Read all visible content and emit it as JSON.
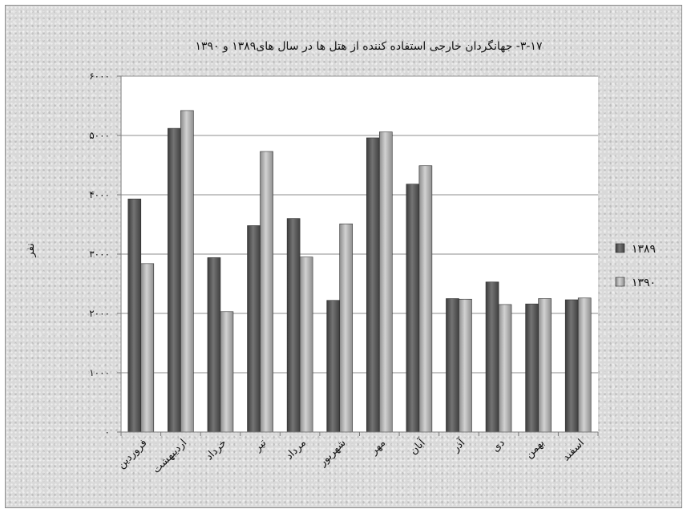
{
  "chart_data": {
    "type": "bar",
    "title": "۳-۱۷- جهانگردان خارجی استفاده کننده از هتل ها در سال های۱۳۸۹ و ۱۳۹۰",
    "ylabel": "نفر",
    "xlabel": "",
    "ylim": [
      0,
      6000
    ],
    "yticks": [
      {
        "value": 0,
        "label": "۰"
      },
      {
        "value": 1000,
        "label": "۱۰۰۰"
      },
      {
        "value": 2000,
        "label": "۲۰۰۰"
      },
      {
        "value": 3000,
        "label": "۳۰۰۰"
      },
      {
        "value": 4000,
        "label": "۴۰۰۰"
      },
      {
        "value": 5000,
        "label": "۵۰۰۰"
      },
      {
        "value": 6000,
        "label": "۶۰۰۰"
      }
    ],
    "grid": true,
    "legend_position": "right",
    "categories": [
      "فروردین",
      "اردیبهشت",
      "خرداد",
      "تیر",
      "مرداد",
      "شهریور",
      "مهر",
      "آبان",
      "آذر",
      "دی",
      "بهمن",
      "اسفند"
    ],
    "series": [
      {
        "name": "۱۳۸۹",
        "color": "#5f5f5f",
        "values": [
          3930,
          5120,
          2940,
          3480,
          3600,
          2220,
          4960,
          4180,
          2250,
          2530,
          2160,
          2230
        ]
      },
      {
        "name": "۱۳۹۰",
        "color": "#a9a9a9",
        "values": [
          2840,
          5420,
          2030,
          4730,
          2950,
          3510,
          5060,
          4490,
          2240,
          2150,
          2250,
          2260
        ]
      }
    ]
  }
}
